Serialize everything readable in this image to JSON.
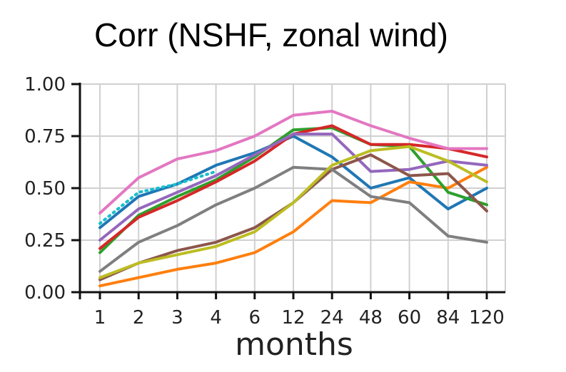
{
  "chart_data": {
    "type": "line",
    "title": "Corr (NSHF, zonal wind)",
    "xlabel": "months",
    "ylabel": "",
    "categories": [
      "1",
      "2",
      "3",
      "4",
      "6",
      "12",
      "24",
      "48",
      "60",
      "84",
      "120"
    ],
    "yticks": [
      "0.00",
      "0.25",
      "0.50",
      "0.75",
      "1.00"
    ],
    "ylim": [
      0,
      1
    ],
    "grid": true,
    "series": [
      {
        "color": "#1f77b4",
        "style": "solid",
        "values": [
          0.31,
          0.46,
          0.52,
          0.61,
          0.67,
          0.75,
          0.65,
          0.5,
          0.55,
          0.4,
          0.5
        ]
      },
      {
        "color": "#17becf",
        "style": "dotted",
        "values": [
          0.33,
          0.48,
          0.52,
          0.58,
          null,
          null,
          null,
          null,
          null,
          null,
          null
        ]
      },
      {
        "color": "#ff7f0e",
        "style": "solid",
        "values": [
          0.03,
          0.07,
          0.11,
          0.14,
          0.19,
          0.29,
          0.44,
          0.43,
          0.53,
          0.5,
          0.6
        ]
      },
      {
        "color": "#2ca02c",
        "style": "solid",
        "values": [
          0.19,
          0.37,
          0.46,
          0.54,
          0.65,
          0.78,
          0.79,
          0.71,
          0.7,
          0.48,
          0.42
        ]
      },
      {
        "color": "#d62728",
        "style": "solid",
        "values": [
          0.21,
          0.36,
          0.44,
          0.53,
          0.63,
          0.76,
          0.8,
          0.71,
          0.71,
          0.69,
          0.65
        ]
      },
      {
        "color": "#9467bd",
        "style": "solid",
        "values": [
          0.25,
          0.4,
          0.48,
          0.56,
          0.66,
          0.76,
          0.76,
          0.58,
          0.59,
          0.63,
          0.61
        ]
      },
      {
        "color": "#8c564b",
        "style": "solid",
        "values": [
          0.06,
          0.14,
          0.2,
          0.24,
          0.31,
          0.43,
          0.59,
          0.66,
          0.56,
          0.57,
          0.39
        ]
      },
      {
        "color": "#e377c2",
        "style": "solid",
        "values": [
          0.38,
          0.55,
          0.64,
          0.68,
          0.75,
          0.85,
          0.87,
          0.8,
          0.74,
          0.69,
          0.69
        ]
      },
      {
        "color": "#7f7f7f",
        "style": "solid",
        "values": [
          0.1,
          0.24,
          0.32,
          0.42,
          0.5,
          0.6,
          0.59,
          0.46,
          0.43,
          0.27,
          0.24
        ]
      },
      {
        "color": "#bcbd22",
        "style": "solid",
        "values": [
          0.07,
          0.14,
          0.18,
          0.22,
          0.29,
          0.43,
          0.61,
          0.68,
          0.7,
          0.63,
          0.53
        ]
      }
    ]
  }
}
